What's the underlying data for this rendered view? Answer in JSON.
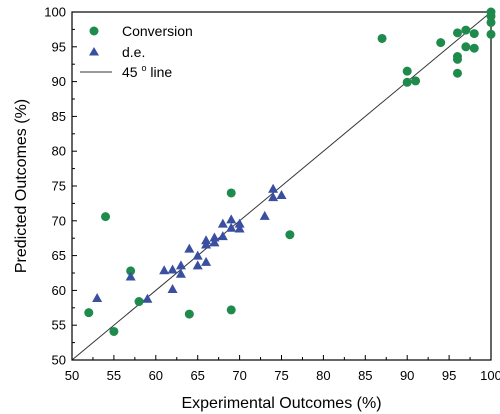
{
  "chart_data": {
    "type": "scatter",
    "title": "",
    "xlabel": "Experimental Outcomes (%)",
    "ylabel": "Predicted Outcomes (%)",
    "xlim": [
      50,
      100
    ],
    "ylim": [
      50,
      100
    ],
    "xticks": [
      "50",
      "55",
      "60",
      "65",
      "70",
      "75",
      "80",
      "85",
      "90",
      "95",
      "100"
    ],
    "yticks": [
      "50",
      "55",
      "60",
      "65",
      "70",
      "75",
      "80",
      "85",
      "90",
      "95",
      "100"
    ],
    "grid": false,
    "legend_position": "top-left",
    "series": [
      {
        "name": "Conversion",
        "marker": "circle",
        "color": "#1e8a4c",
        "points": [
          {
            "x": 52,
            "y": 56.8
          },
          {
            "x": 54,
            "y": 70.6
          },
          {
            "x": 55,
            "y": 54.1
          },
          {
            "x": 57,
            "y": 62.8
          },
          {
            "x": 58,
            "y": 58.4
          },
          {
            "x": 64,
            "y": 56.6
          },
          {
            "x": 69,
            "y": 57.2
          },
          {
            "x": 69,
            "y": 74.0
          },
          {
            "x": 76,
            "y": 68.0
          },
          {
            "x": 87,
            "y": 96.2
          },
          {
            "x": 90,
            "y": 91.5
          },
          {
            "x": 90,
            "y": 89.9
          },
          {
            "x": 91,
            "y": 90.1
          },
          {
            "x": 94,
            "y": 95.6
          },
          {
            "x": 96,
            "y": 97.0
          },
          {
            "x": 96,
            "y": 93.6
          },
          {
            "x": 96,
            "y": 93.2
          },
          {
            "x": 96,
            "y": 91.2
          },
          {
            "x": 97,
            "y": 97.4
          },
          {
            "x": 97,
            "y": 95.0
          },
          {
            "x": 98,
            "y": 96.9
          },
          {
            "x": 98,
            "y": 94.8
          },
          {
            "x": 100,
            "y": 100.0
          },
          {
            "x": 100,
            "y": 99.4
          },
          {
            "x": 100,
            "y": 98.5
          },
          {
            "x": 100,
            "y": 96.8
          }
        ]
      },
      {
        "name": "d.e.",
        "marker": "triangle",
        "color": "#3a4fa0",
        "points": [
          {
            "x": 53,
            "y": 58.9
          },
          {
            "x": 57,
            "y": 62.0
          },
          {
            "x": 59,
            "y": 58.8
          },
          {
            "x": 61,
            "y": 62.9
          },
          {
            "x": 62,
            "y": 63.0
          },
          {
            "x": 62,
            "y": 60.2
          },
          {
            "x": 63,
            "y": 63.6
          },
          {
            "x": 63,
            "y": 62.4
          },
          {
            "x": 64,
            "y": 66.0
          },
          {
            "x": 65,
            "y": 63.6
          },
          {
            "x": 65,
            "y": 65.0
          },
          {
            "x": 66,
            "y": 67.2
          },
          {
            "x": 66,
            "y": 66.6
          },
          {
            "x": 66,
            "y": 64.1
          },
          {
            "x": 67,
            "y": 67.6
          },
          {
            "x": 67,
            "y": 66.9
          },
          {
            "x": 68,
            "y": 69.6
          },
          {
            "x": 68,
            "y": 67.8
          },
          {
            "x": 69,
            "y": 70.2
          },
          {
            "x": 69,
            "y": 69.0
          },
          {
            "x": 70,
            "y": 69.6
          },
          {
            "x": 70,
            "y": 68.9
          },
          {
            "x": 73,
            "y": 70.7
          },
          {
            "x": 74,
            "y": 74.6
          },
          {
            "x": 74,
            "y": 73.4
          },
          {
            "x": 75,
            "y": 73.7
          }
        ]
      }
    ],
    "reference_line": {
      "name": "45 o line",
      "from": [
        50,
        50
      ],
      "to": [
        100,
        100
      ],
      "color": "#333333"
    }
  }
}
